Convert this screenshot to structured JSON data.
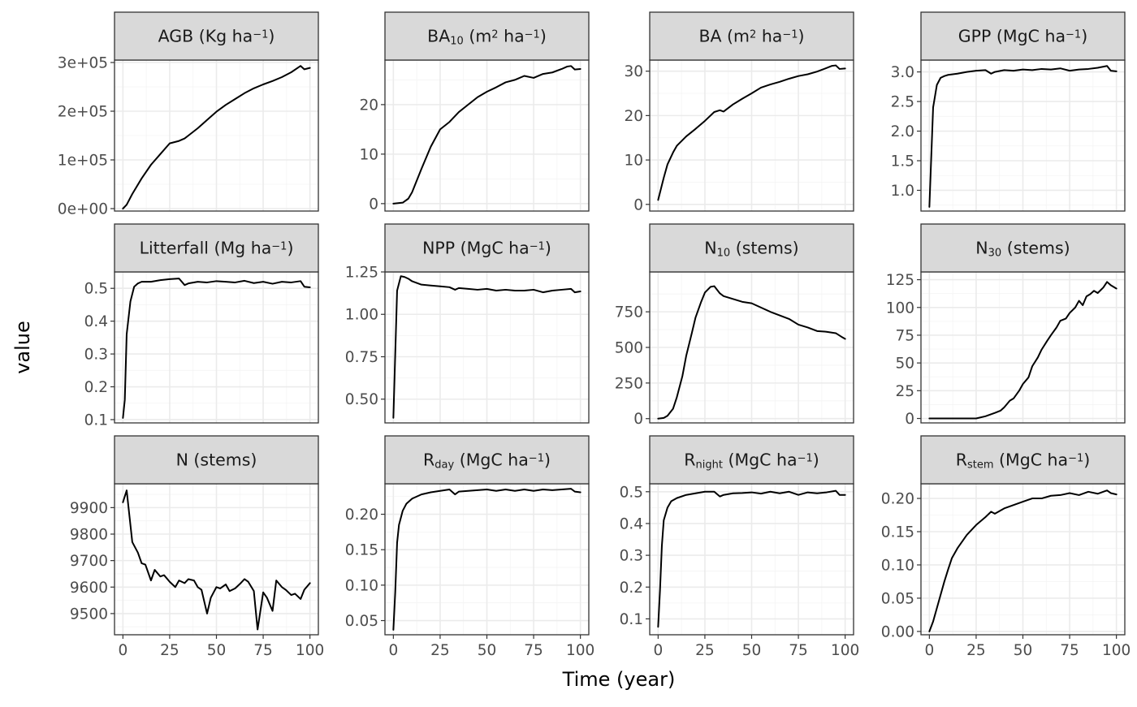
{
  "chart_data": {
    "type": "line",
    "layout": "facet_wrap",
    "ncol": 4,
    "scales": "free_y",
    "xlabel": "Time (year)",
    "ylabel": "value",
    "xlim": [
      0,
      100
    ],
    "x_ticks": [
      "0",
      "25",
      "50",
      "75",
      "100"
    ],
    "line_color": "#000000",
    "strip_fill": "#d9d9d9",
    "panels": [
      {
        "label": [
          {
            "t": "AGB (Kg ha"
          },
          {
            "t": "−1",
            "sup": true
          },
          {
            "t": ")"
          }
        ],
        "ylim": [
          -5000,
          305000
        ],
        "y_ticks": [
          0,
          100000,
          200000,
          300000
        ],
        "y_tick_labels": [
          "0e+00",
          "1e+05",
          "2e+05",
          "3e+05"
        ],
        "x": [
          0,
          2,
          5,
          10,
          15,
          20,
          25,
          30,
          33,
          35,
          40,
          45,
          50,
          55,
          60,
          65,
          70,
          75,
          80,
          85,
          90,
          95,
          97,
          100
        ],
        "values": [
          0,
          8000,
          30000,
          62000,
          90000,
          112000,
          134000,
          139000,
          144000,
          150000,
          165000,
          182000,
          199000,
          213000,
          225000,
          237000,
          247000,
          255000,
          262000,
          270000,
          280000,
          293000,
          286000,
          289000
        ]
      },
      {
        "label": [
          {
            "t": "BA"
          },
          {
            "t": "10",
            "sub": true
          },
          {
            "t": " (m"
          },
          {
            "t": "2",
            "sup": true
          },
          {
            "t": " ha"
          },
          {
            "t": "−1",
            "sup": true
          },
          {
            "t": ")"
          }
        ],
        "ylim": [
          -1.5,
          29
        ],
        "y_ticks": [
          0,
          10,
          20
        ],
        "y_tick_labels": [
          "0",
          "10",
          "20"
        ],
        "x": [
          0,
          5,
          8,
          10,
          15,
          20,
          25,
          30,
          35,
          40,
          45,
          50,
          55,
          60,
          65,
          70,
          75,
          80,
          85,
          90,
          93,
          95,
          97,
          100
        ],
        "values": [
          0,
          0.2,
          1,
          2.3,
          7,
          11.5,
          15,
          16.5,
          18.5,
          20,
          21.5,
          22.6,
          23.5,
          24.5,
          25,
          25.8,
          25.4,
          26.2,
          26.5,
          27.2,
          27.7,
          27.8,
          27.1,
          27.2
        ]
      },
      {
        "label": [
          {
            "t": "BA (m"
          },
          {
            "t": "2",
            "sup": true
          },
          {
            "t": " ha"
          },
          {
            "t": "−1",
            "sup": true
          },
          {
            "t": ")"
          }
        ],
        "ylim": [
          -1.5,
          32.5
        ],
        "y_ticks": [
          0,
          10,
          20,
          30
        ],
        "y_tick_labels": [
          "0",
          "10",
          "20",
          "30"
        ],
        "x": [
          0,
          3,
          5,
          8,
          10,
          15,
          20,
          25,
          30,
          33,
          35,
          40,
          45,
          50,
          55,
          60,
          65,
          70,
          75,
          80,
          85,
          90,
          93,
          95,
          97,
          100
        ],
        "values": [
          1,
          6,
          9,
          11.7,
          13.2,
          15.3,
          17,
          18.8,
          20.8,
          21.2,
          20.9,
          22.5,
          23.8,
          25,
          26.3,
          27,
          27.6,
          28.3,
          28.9,
          29.3,
          29.9,
          30.7,
          31.2,
          31.3,
          30.5,
          30.6
        ]
      },
      {
        "label": [
          {
            "t": "GPP (MgC ha"
          },
          {
            "t": "−1",
            "sup": true
          },
          {
            "t": ")"
          }
        ],
        "ylim": [
          0.65,
          3.2
        ],
        "y_ticks": [
          1.0,
          1.5,
          2.0,
          2.5,
          3.0
        ],
        "y_tick_labels": [
          "1.0",
          "1.5",
          "2.0",
          "2.5",
          "3.0"
        ],
        "x": [
          0,
          2,
          4,
          6,
          8,
          10,
          15,
          20,
          25,
          30,
          33,
          35,
          40,
          45,
          50,
          55,
          60,
          65,
          70,
          75,
          80,
          85,
          90,
          95,
          97,
          100
        ],
        "values": [
          0.72,
          2.4,
          2.78,
          2.9,
          2.93,
          2.95,
          2.97,
          3.0,
          3.02,
          3.03,
          2.97,
          3.0,
          3.03,
          3.02,
          3.04,
          3.03,
          3.05,
          3.04,
          3.06,
          3.02,
          3.04,
          3.05,
          3.07,
          3.1,
          3.02,
          3.01
        ]
      },
      {
        "label": [
          {
            "t": "Litterfall (Mg ha"
          },
          {
            "t": "−1",
            "sup": true
          },
          {
            "t": ")"
          }
        ],
        "ylim": [
          0.09,
          0.55
        ],
        "y_ticks": [
          0.1,
          0.2,
          0.3,
          0.4,
          0.5
        ],
        "y_tick_labels": [
          "0.1",
          "0.2",
          "0.3",
          "0.4",
          "0.5"
        ],
        "x": [
          0,
          1,
          2,
          4,
          6,
          8,
          10,
          15,
          20,
          25,
          30,
          33,
          35,
          40,
          45,
          50,
          55,
          60,
          65,
          70,
          75,
          80,
          85,
          90,
          95,
          97,
          100
        ],
        "values": [
          0.105,
          0.16,
          0.36,
          0.46,
          0.505,
          0.515,
          0.52,
          0.52,
          0.525,
          0.528,
          0.53,
          0.51,
          0.515,
          0.52,
          0.518,
          0.522,
          0.52,
          0.518,
          0.523,
          0.516,
          0.52,
          0.514,
          0.52,
          0.518,
          0.522,
          0.505,
          0.503
        ]
      },
      {
        "label": [
          {
            "t": "NPP (MgC ha"
          },
          {
            "t": "−1",
            "sup": true
          },
          {
            "t": ")"
          }
        ],
        "ylim": [
          0.36,
          1.25
        ],
        "y_ticks": [
          0.5,
          0.75,
          1.0,
          1.25
        ],
        "y_tick_labels": [
          "0.50",
          "0.75",
          "1.00",
          "1.25"
        ],
        "x": [
          0,
          2,
          4,
          6,
          8,
          10,
          15,
          20,
          25,
          30,
          33,
          35,
          40,
          45,
          50,
          55,
          60,
          65,
          70,
          75,
          80,
          85,
          90,
          95,
          97,
          100
        ],
        "values": [
          0.39,
          1.14,
          1.225,
          1.22,
          1.21,
          1.195,
          1.175,
          1.17,
          1.165,
          1.16,
          1.145,
          1.155,
          1.15,
          1.145,
          1.15,
          1.14,
          1.145,
          1.14,
          1.14,
          1.145,
          1.13,
          1.14,
          1.145,
          1.15,
          1.13,
          1.135
        ]
      },
      {
        "label": [
          {
            "t": "N"
          },
          {
            "t": "10",
            "sub": true
          },
          {
            "t": " (stems)"
          }
        ],
        "ylim": [
          -30,
          1030
        ],
        "y_ticks": [
          0,
          250,
          500,
          750
        ],
        "y_tick_labels": [
          "0",
          "250",
          "500",
          "750"
        ],
        "x": [
          0,
          3,
          5,
          8,
          10,
          13,
          15,
          18,
          20,
          23,
          25,
          28,
          30,
          33,
          35,
          40,
          45,
          50,
          55,
          60,
          65,
          70,
          75,
          80,
          85,
          90,
          95,
          98,
          100
        ],
        "values": [
          0,
          5,
          20,
          70,
          150,
          300,
          440,
          600,
          710,
          820,
          885,
          925,
          930,
          880,
          860,
          840,
          820,
          810,
          780,
          750,
          725,
          700,
          660,
          640,
          615,
          610,
          600,
          575,
          560
        ]
      },
      {
        "label": [
          {
            "t": "N"
          },
          {
            "t": "30",
            "sub": true
          },
          {
            "t": " (stems)"
          }
        ],
        "ylim": [
          -4,
          132
        ],
        "y_ticks": [
          0,
          25,
          50,
          75,
          100,
          125
        ],
        "y_tick_labels": [
          "0",
          "25",
          "50",
          "75",
          "100",
          "125"
        ],
        "x": [
          0,
          10,
          20,
          25,
          30,
          35,
          38,
          40,
          43,
          45,
          48,
          50,
          53,
          55,
          58,
          60,
          63,
          65,
          68,
          70,
          73,
          75,
          78,
          80,
          82,
          84,
          86,
          88,
          90,
          93,
          95,
          97,
          100
        ],
        "values": [
          0,
          0,
          0,
          0,
          2,
          5,
          7,
          10,
          16,
          18,
          25,
          31,
          37,
          47,
          55,
          62,
          70,
          75,
          82,
          88,
          90,
          95,
          100,
          106,
          102,
          110,
          112,
          115,
          113,
          118,
          123,
          120,
          117
        ]
      },
      {
        "label": [
          {
            "t": "N (stems)"
          }
        ],
        "ylim": [
          9420,
          9990
        ],
        "y_ticks": [
          9500,
          9600,
          9700,
          9800,
          9900
        ],
        "y_tick_labels": [
          "9500",
          "9600",
          "9700",
          "9800",
          "9900"
        ],
        "x": [
          0,
          2,
          5,
          8,
          10,
          12,
          15,
          17,
          20,
          22,
          25,
          28,
          30,
          33,
          35,
          38,
          40,
          42,
          45,
          47,
          50,
          52,
          55,
          57,
          60,
          63,
          65,
          67,
          70,
          72,
          75,
          77,
          80,
          82,
          85,
          87,
          90,
          92,
          95,
          97,
          100
        ],
        "values": [
          9920,
          9965,
          9770,
          9730,
          9690,
          9685,
          9625,
          9665,
          9640,
          9645,
          9620,
          9600,
          9625,
          9615,
          9630,
          9625,
          9600,
          9590,
          9500,
          9560,
          9600,
          9595,
          9610,
          9585,
          9595,
          9615,
          9630,
          9620,
          9585,
          9440,
          9580,
          9560,
          9510,
          9625,
          9600,
          9590,
          9570,
          9575,
          9555,
          9590,
          9615
        ]
      },
      {
        "label": [
          {
            "t": "R"
          },
          {
            "t": "day",
            "sub": true
          },
          {
            "t": " (MgC ha"
          },
          {
            "t": "−1",
            "sup": true
          },
          {
            "t": ")"
          }
        ],
        "ylim": [
          0.03,
          0.243
        ],
        "y_ticks": [
          0.05,
          0.1,
          0.15,
          0.2
        ],
        "y_tick_labels": [
          "0.05",
          "0.10",
          "0.15",
          "0.20"
        ],
        "x": [
          0,
          1,
          2,
          3,
          5,
          7,
          10,
          15,
          20,
          25,
          30,
          33,
          35,
          40,
          45,
          50,
          55,
          60,
          65,
          70,
          75,
          80,
          85,
          90,
          95,
          97,
          100
        ],
        "values": [
          0.037,
          0.09,
          0.16,
          0.185,
          0.205,
          0.215,
          0.222,
          0.228,
          0.231,
          0.233,
          0.235,
          0.228,
          0.232,
          0.233,
          0.234,
          0.235,
          0.233,
          0.235,
          0.233,
          0.235,
          0.233,
          0.235,
          0.234,
          0.235,
          0.236,
          0.232,
          0.231
        ]
      },
      {
        "label": [
          {
            "t": "R"
          },
          {
            "t": "night",
            "sub": true
          },
          {
            "t": " (MgC ha"
          },
          {
            "t": "−1",
            "sup": true
          },
          {
            "t": ")"
          }
        ],
        "ylim": [
          0.05,
          0.525
        ],
        "y_ticks": [
          0.1,
          0.2,
          0.3,
          0.4,
          0.5
        ],
        "y_tick_labels": [
          "0.1",
          "0.2",
          "0.3",
          "0.4",
          "0.5"
        ],
        "x": [
          0,
          1,
          2,
          3,
          5,
          7,
          10,
          15,
          20,
          25,
          30,
          33,
          35,
          40,
          45,
          50,
          55,
          60,
          65,
          70,
          75,
          80,
          85,
          90,
          95,
          97,
          100
        ],
        "values": [
          0.075,
          0.19,
          0.33,
          0.41,
          0.45,
          0.47,
          0.48,
          0.49,
          0.495,
          0.5,
          0.5,
          0.485,
          0.49,
          0.495,
          0.496,
          0.498,
          0.494,
          0.5,
          0.495,
          0.5,
          0.49,
          0.498,
          0.495,
          0.498,
          0.503,
          0.49,
          0.49
        ]
      },
      {
        "label": [
          {
            "t": "R"
          },
          {
            "t": "stem",
            "sub": true
          },
          {
            "t": " (MgC ha"
          },
          {
            "t": "−1",
            "sup": true
          },
          {
            "t": ")"
          }
        ],
        "ylim": [
          -0.005,
          0.222
        ],
        "y_ticks": [
          0.0,
          0.05,
          0.1,
          0.15,
          0.2
        ],
        "y_tick_labels": [
          "0.00",
          "0.05",
          "0.10",
          "0.15",
          "0.20"
        ],
        "x": [
          0,
          2,
          5,
          8,
          10,
          12,
          15,
          20,
          25,
          30,
          33,
          35,
          40,
          45,
          50,
          55,
          60,
          65,
          70,
          75,
          80,
          85,
          90,
          93,
          95,
          97,
          100
        ],
        "values": [
          0,
          0.015,
          0.045,
          0.075,
          0.093,
          0.11,
          0.125,
          0.145,
          0.16,
          0.172,
          0.18,
          0.177,
          0.185,
          0.19,
          0.195,
          0.2,
          0.2,
          0.204,
          0.205,
          0.208,
          0.205,
          0.21,
          0.207,
          0.21,
          0.212,
          0.208,
          0.206
        ]
      }
    ]
  }
}
